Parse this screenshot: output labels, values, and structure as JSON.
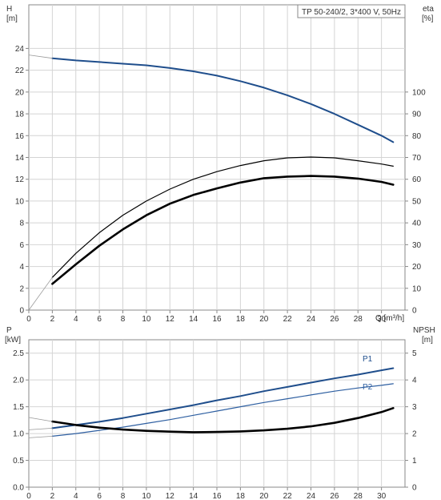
{
  "chart_data": [
    {
      "type": "line",
      "title": "TP 50-240/2, 3*400 V, 50Hz",
      "xlabel": "Q [m³/h]",
      "xlim": [
        0,
        32
      ],
      "x_ticks": [
        0,
        2,
        4,
        6,
        8,
        10,
        12,
        14,
        16,
        18,
        20,
        22,
        24,
        26,
        28,
        30
      ],
      "y_left": {
        "label_line1": "H",
        "label_line2": "[m]",
        "lim": [
          0,
          28
        ],
        "ticks": [
          0,
          2,
          4,
          6,
          8,
          10,
          12,
          14,
          16,
          18,
          20,
          22,
          24
        ]
      },
      "y_right": {
        "label_line1": "eta",
        "label_line2": "[%]",
        "lim": [
          0,
          140
        ],
        "ticks": [
          0,
          10,
          20,
          30,
          40,
          50,
          60,
          70,
          80,
          90,
          100
        ]
      },
      "grid": true,
      "series": [
        {
          "axis": "left",
          "color": "#1f4e8c",
          "width": 2,
          "x": [
            2.0,
            4,
            6,
            8,
            10,
            12,
            14,
            16,
            18,
            20,
            22,
            24,
            26,
            28,
            30,
            31.0
          ],
          "y": [
            23.1,
            22.9,
            22.75,
            22.6,
            22.45,
            22.2,
            21.9,
            21.5,
            21.0,
            20.4,
            19.7,
            18.9,
            18.0,
            17.0,
            16.0,
            15.4
          ]
        },
        {
          "axis": "left",
          "color": "#999999",
          "width": 0.8,
          "x": [
            0,
            2.0
          ],
          "y": [
            23.4,
            23.1
          ]
        },
        {
          "axis": "right",
          "color": "#000000",
          "width": 1.2,
          "x": [
            2.0,
            4,
            6,
            8,
            10,
            12,
            14,
            16,
            18,
            20,
            22,
            24,
            26,
            28,
            30,
            31.0
          ],
          "y": [
            15,
            26,
            35.5,
            43.5,
            50,
            55.5,
            60,
            63.5,
            66.3,
            68.5,
            69.8,
            70.2,
            69.8,
            68.5,
            67,
            66
          ]
        },
        {
          "axis": "right",
          "color": "#000000",
          "width": 2.6,
          "x": [
            2.0,
            4,
            6,
            8,
            10,
            12,
            14,
            16,
            18,
            20,
            22,
            24,
            26,
            28,
            30,
            31.0
          ],
          "y": [
            12,
            21,
            29.5,
            37,
            43.5,
            48.8,
            52.8,
            55.8,
            58.5,
            60.5,
            61.2,
            61.5,
            61.2,
            60.3,
            58.8,
            57.5
          ]
        },
        {
          "axis": "right",
          "color": "#999999",
          "width": 0.8,
          "x": [
            0,
            2.0
          ],
          "y": [
            0,
            15
          ]
        }
      ]
    },
    {
      "type": "line",
      "xlim": [
        0,
        32
      ],
      "x_ticks": [
        0,
        2,
        4,
        6,
        8,
        10,
        12,
        14,
        16,
        18,
        20,
        22,
        24,
        26,
        28,
        30
      ],
      "y_left": {
        "label_line1": "P",
        "label_line2": "[kW]",
        "lim": [
          0,
          2.75
        ],
        "ticks": [
          0.0,
          0.5,
          1.0,
          1.5,
          2.0,
          2.5
        ],
        "tick_labels": [
          "0.0",
          "0.5",
          "1.0",
          "1.5",
          "2.0",
          "2.5"
        ]
      },
      "y_right": {
        "label_line1": "NPSH",
        "label_line2": "[m]",
        "lim": [
          0,
          5.5
        ],
        "ticks": [
          0,
          1,
          2,
          3,
          4,
          5
        ]
      },
      "grid": true,
      "series": [
        {
          "name": "P1",
          "axis": "left",
          "color": "#1f4e8c",
          "width": 2,
          "x": [
            2.0,
            4,
            6,
            8,
            10,
            12,
            14,
            16,
            18,
            20,
            22,
            24,
            26,
            28,
            30,
            31.0
          ],
          "y": [
            1.1,
            1.16,
            1.22,
            1.29,
            1.37,
            1.45,
            1.53,
            1.62,
            1.7,
            1.79,
            1.87,
            1.95,
            2.03,
            2.1,
            2.18,
            2.22
          ]
        },
        {
          "axis": "left",
          "color": "#999999",
          "width": 0.8,
          "x": [
            0,
            2.0
          ],
          "y": [
            1.07,
            1.1
          ]
        },
        {
          "name": "P2",
          "axis": "left",
          "color": "#2e5fa1",
          "width": 1.2,
          "x": [
            2.0,
            4,
            6,
            8,
            10,
            12,
            14,
            16,
            18,
            20,
            22,
            24,
            26,
            28,
            30,
            31.0
          ],
          "y": [
            0.95,
            1.0,
            1.06,
            1.12,
            1.19,
            1.26,
            1.34,
            1.42,
            1.5,
            1.58,
            1.65,
            1.72,
            1.79,
            1.85,
            1.9,
            1.93
          ]
        },
        {
          "axis": "left",
          "color": "#999999",
          "width": 0.8,
          "x": [
            0,
            2.0
          ],
          "y": [
            0.92,
            0.95
          ]
        },
        {
          "axis": "right",
          "color": "#000000",
          "width": 2.6,
          "x": [
            2.0,
            4,
            6,
            8,
            10,
            12,
            14,
            16,
            18,
            20,
            22,
            24,
            26,
            28,
            30,
            31.0
          ],
          "y": [
            2.45,
            2.32,
            2.22,
            2.15,
            2.1,
            2.07,
            2.05,
            2.06,
            2.08,
            2.12,
            2.18,
            2.27,
            2.4,
            2.58,
            2.8,
            2.95
          ]
        },
        {
          "axis": "right",
          "color": "#999999",
          "width": 0.8,
          "x": [
            0,
            2.0
          ],
          "y": [
            2.6,
            2.45
          ]
        }
      ]
    }
  ]
}
